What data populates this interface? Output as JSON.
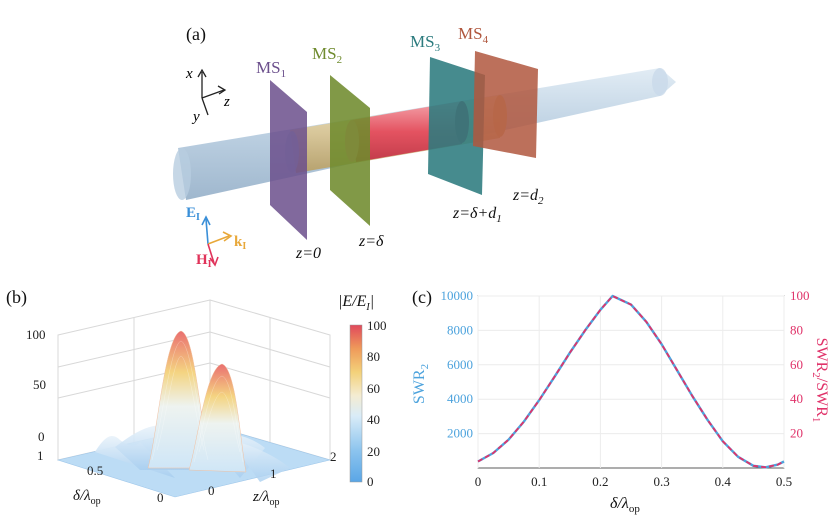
{
  "panel_a": {
    "label": "(a)",
    "axes": {
      "x": "x",
      "y": "y",
      "z": "z"
    },
    "metasurfaces": [
      {
        "name": "MS",
        "sub": "1",
        "color": "#6b4f8c",
        "position_label": "z=0"
      },
      {
        "name": "MS",
        "sub": "2",
        "color": "#6f8b2e",
        "position_label": "z=δ"
      },
      {
        "name": "MS",
        "sub": "3",
        "color": "#2c7b7e",
        "position_label": "z=δ+d",
        "position_sub": "1"
      },
      {
        "name": "MS",
        "sub": "4",
        "color": "#b0573e",
        "position_label": "z=d",
        "position_sub": "2"
      }
    ],
    "fields": {
      "E": {
        "main": "E",
        "sub": "I",
        "color": "#3a8fd8"
      },
      "H": {
        "main": "H",
        "sub": "I",
        "color": "#e0335a"
      },
      "k": {
        "main": "k",
        "sub": "I",
        "color": "#e8a83a"
      }
    }
  },
  "panel_b": {
    "label": "(b)",
    "colorbar_title": "|E/E",
    "colorbar_title_sub": "I",
    "colorbar_title_end": "|",
    "colorbar_ticks": [
      "100",
      "80",
      "60",
      "40",
      "20",
      "0"
    ],
    "z_ticks": [
      "0",
      "50",
      "100"
    ],
    "x_axis": {
      "label": "z/λ",
      "sub": "op",
      "ticks": [
        "0",
        "1",
        "2"
      ]
    },
    "y_axis": {
      "label": "δ/λ",
      "sub": "op",
      "ticks": [
        "1",
        "0.5",
        "0"
      ]
    }
  },
  "panel_c": {
    "label": "(c)",
    "left_axis": {
      "label": "SWR",
      "sub": "2",
      "color": "#4da3dd",
      "ticks": [
        "10000",
        "8000",
        "6000",
        "4000",
        "2000"
      ]
    },
    "right_axis": {
      "label": "SWR",
      "sub2": "2",
      "mid": "/SWR",
      "sub1": "1",
      "color": "#e0336a",
      "ticks": [
        "100",
        "80",
        "60",
        "40",
        "20"
      ]
    },
    "x_axis": {
      "label": "δ/λ",
      "sub": "op",
      "ticks": [
        "0",
        "0.1",
        "0.2",
        "0.3",
        "0.4",
        "0.5"
      ]
    }
  },
  "chart_data": {
    "type": "line",
    "title": "",
    "xlabel": "δ/λop",
    "ylabel": "SWR2",
    "ylabel_right": "SWR2/SWR1",
    "xlim": [
      0,
      0.5
    ],
    "ylim": [
      0,
      10000
    ],
    "ylim_right": [
      0,
      100
    ],
    "x": [
      0,
      0.025,
      0.05,
      0.075,
      0.1,
      0.125,
      0.15,
      0.175,
      0.2,
      0.22,
      0.25,
      0.275,
      0.3,
      0.325,
      0.35,
      0.375,
      0.4,
      0.425,
      0.45,
      0.47,
      0.49,
      0.5
    ],
    "series": [
      {
        "name": "SWR2",
        "axis": "left",
        "color": "#4da3dd",
        "values": [
          380,
          870,
          1650,
          2700,
          3950,
          5300,
          6700,
          8000,
          9200,
          10000,
          9500,
          8500,
          7200,
          5700,
          4200,
          2800,
          1550,
          650,
          130,
          40,
          200,
          380
        ]
      },
      {
        "name": "SWR2/SWR1",
        "axis": "right",
        "color": "#e0336a",
        "dashed": true,
        "values": [
          3.8,
          8.7,
          16.5,
          27,
          39.5,
          53,
          67,
          80,
          92,
          100,
          95,
          85,
          72,
          57,
          42,
          28,
          15.5,
          6.5,
          1.3,
          0.4,
          2,
          3.8
        ]
      }
    ]
  }
}
